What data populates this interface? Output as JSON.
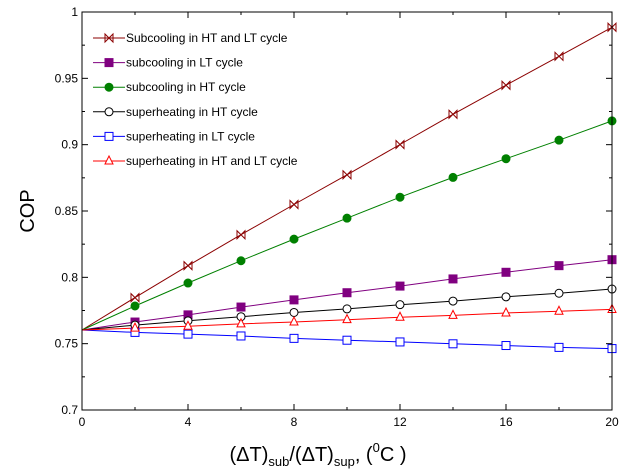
{
  "chart_data": {
    "type": "line",
    "xlabel": "(ΔT)sub/(ΔT)sup, (0C )",
    "xlabel_parts": {
      "open": "(",
      "delta1": "ΔT)",
      "sub1": "sub",
      "slash": "/(",
      "delta2": "ΔT)",
      "sub2": "sup",
      "unit_open": ", (",
      "sup0": "0",
      "unit_close": "C )"
    },
    "ylabel": "COP",
    "xlim": [
      0,
      20
    ],
    "ylim": [
      0.7,
      1.0
    ],
    "xticks": [
      0,
      4,
      8,
      12,
      16,
      20
    ],
    "xtick_labels": [
      "0",
      "4",
      "8",
      "12",
      "16",
      "20"
    ],
    "yticks": [
      0.7,
      0.75,
      0.8,
      0.85,
      0.9,
      0.95,
      1.0
    ],
    "ytick_labels": [
      "0.7",
      "0.75",
      "0.8",
      "0.85",
      "0.9",
      "0.95",
      "1"
    ],
    "legend_position": "top-left",
    "grid": false,
    "series": [
      {
        "name": "Subcooling in HT and LT cycle",
        "color": "#8b0000",
        "marker": "bowtie",
        "x": [
          0,
          2,
          4,
          6,
          8,
          10,
          12,
          14,
          16,
          18,
          20
        ],
        "y": [
          0.7603,
          0.7847,
          0.8088,
          0.8321,
          0.8549,
          0.8773,
          0.9001,
          0.9229,
          0.9448,
          0.9666,
          0.9885
        ]
      },
      {
        "name": "subcooling in LT cycle",
        "color": "#800080",
        "marker": "filled-square",
        "x": [
          0,
          2,
          4,
          6,
          8,
          10,
          12,
          14,
          16,
          18,
          20
        ],
        "y": [
          0.7603,
          0.7663,
          0.7717,
          0.7776,
          0.783,
          0.7884,
          0.7934,
          0.7988,
          0.8038,
          0.8088,
          0.8133
        ]
      },
      {
        "name": "subcooling in HT cycle",
        "color": "#008000",
        "marker": "filled-circle",
        "x": [
          0,
          2,
          4,
          6,
          8,
          10,
          12,
          14,
          16,
          18,
          20
        ],
        "y": [
          0.7603,
          0.7784,
          0.7957,
          0.8125,
          0.8288,
          0.8446,
          0.8604,
          0.8753,
          0.8894,
          0.9034,
          0.9179
        ]
      },
      {
        "name": "superheating in HT cycle",
        "color": "#000000",
        "marker": "open-circle",
        "x": [
          0,
          2,
          4,
          6,
          8,
          10,
          12,
          14,
          16,
          18,
          20
        ],
        "y": [
          0.7603,
          0.764,
          0.7672,
          0.7703,
          0.7735,
          0.7762,
          0.7794,
          0.7821,
          0.7853,
          0.788,
          0.7912
        ]
      },
      {
        "name": "superheating in LT cycle",
        "color": "#0000ff",
        "marker": "open-square",
        "x": [
          0,
          2,
          4,
          6,
          8,
          10,
          12,
          14,
          16,
          18,
          20
        ],
        "y": [
          0.7603,
          0.7585,
          0.7572,
          0.7558,
          0.754,
          0.7526,
          0.7513,
          0.7499,
          0.7486,
          0.7472,
          0.7463
        ]
      },
      {
        "name": "superheating in HT and LT cycle",
        "color": "#ff0000",
        "marker": "open-triangle",
        "x": [
          0,
          2,
          4,
          6,
          8,
          10,
          12,
          14,
          16,
          18,
          20
        ],
        "y": [
          0.7603,
          0.7617,
          0.7631,
          0.7649,
          0.7663,
          0.7681,
          0.7699,
          0.7713,
          0.7731,
          0.7744,
          0.7758
        ]
      }
    ]
  }
}
